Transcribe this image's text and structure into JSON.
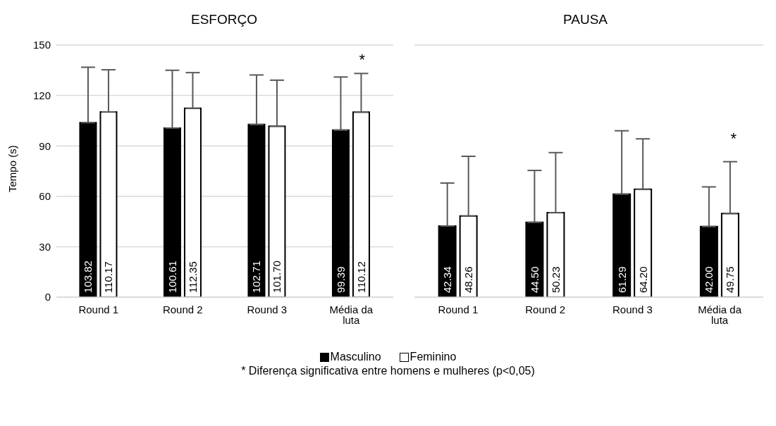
{
  "chart_data": [
    {
      "type": "bar",
      "title": "ESFORÇO",
      "ylabel": "Tempo (s)",
      "categories": [
        "Round 1",
        "Round 2",
        "Round 3",
        "Média da luta"
      ],
      "ylim": [
        0,
        150
      ],
      "yticks": [
        0,
        30,
        60,
        90,
        120,
        150
      ],
      "grid": "y",
      "legend": "bottom",
      "series": [
        {
          "name": "Masculino",
          "color": "#000000",
          "values": [
            103.82,
            100.61,
            102.71,
            99.39
          ],
          "value_labels": [
            "103.82",
            "100.61",
            "102.71",
            "99.39"
          ],
          "errors": [
            [
              103.82,
              136.8
            ],
            [
              100.61,
              135.0
            ],
            [
              102.71,
              132.2
            ],
            [
              99.39,
              131.0
            ]
          ]
        },
        {
          "name": "Feminino",
          "color": "#ffffff",
          "values": [
            110.17,
            112.35,
            101.7,
            110.12
          ],
          "value_labels": [
            "110.17",
            "112.35",
            "101.70",
            "110.12"
          ],
          "errors": [
            [
              110.17,
              135.3
            ],
            [
              112.35,
              133.6
            ],
            [
              101.7,
              129.1
            ],
            [
              110.12,
              133.1
            ]
          ]
        }
      ],
      "annotations": [
        "*",
        "* Diferença significativa entre homens e mulheres (p<0,05)"
      ]
    },
    {
      "type": "bar",
      "title": "PAUSA",
      "categories": [
        "Round 1",
        "Round 2",
        "Round 3",
        "Média da luta"
      ],
      "ylim": [
        0,
        150
      ],
      "yticks": [
        0,
        30,
        60,
        90,
        120,
        150
      ],
      "grid": "y",
      "tick_labels": "x",
      "series": [
        {
          "color": "#000000",
          "values": [
            42.34,
            44.5,
            61.29,
            42.0
          ],
          "value_labels": [
            "42.34",
            "44.50",
            "61.29",
            "42.00"
          ],
          "errors": [
            [
              42.34,
              67.9
            ],
            [
              44.5,
              75.4
            ],
            [
              61.29,
              99.0
            ],
            [
              42.0,
              65.6
            ]
          ]
        },
        {
          "color": "#ffffff",
          "values": [
            48.26,
            50.23,
            64.2,
            49.75
          ],
          "value_labels": [
            "48.26",
            "50.23",
            "64.20",
            "49.75"
          ],
          "errors": [
            [
              48.26,
              83.8
            ],
            [
              50.23,
              86.0
            ],
            [
              64.2,
              94.2
            ],
            [
              49.75,
              80.6
            ]
          ]
        }
      ],
      "annotations": [
        "*"
      ]
    }
  ]
}
